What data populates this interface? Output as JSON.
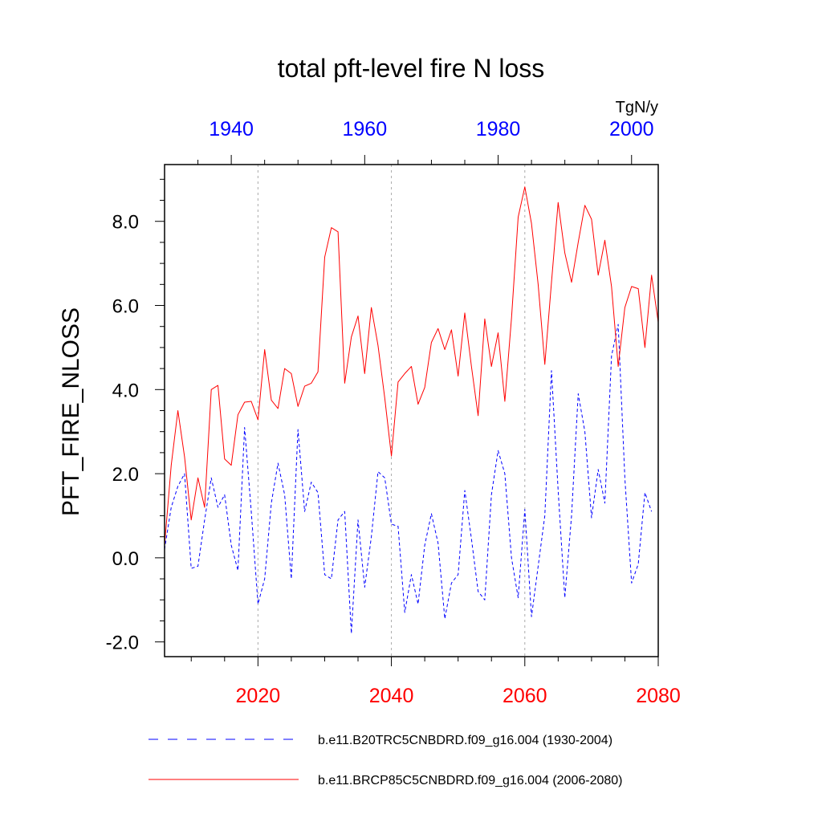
{
  "chart_data": {
    "type": "line",
    "title": "total pft-level fire N loss",
    "ylabel": "PFT_FIRE_NLOSS",
    "units": "TgN/y",
    "ylim": [
      -2.35,
      9.35
    ],
    "y_ticks": [
      -2.0,
      0.0,
      2.0,
      4.0,
      6.0,
      8.0
    ],
    "y_tick_labels": [
      "-2.0",
      "0.0",
      "2.0",
      "4.0",
      "6.0",
      "8.0"
    ],
    "x_bottom": {
      "range": [
        2006,
        2080
      ],
      "ticks": [
        2020,
        2040,
        2060,
        2080
      ],
      "tick_labels": [
        "2020",
        "2040",
        "2060",
        "2080"
      ],
      "color": "#ff0000"
    },
    "x_top": {
      "range": [
        1930,
        2004
      ],
      "ticks": [
        1940,
        1960,
        1980,
        2000
      ],
      "tick_labels": [
        "1940",
        "1960",
        "1980",
        "2000"
      ],
      "color": "#0000ff"
    },
    "grid": "vertical dotted at bottom-axis major ticks",
    "legend_position": "bottom",
    "series": [
      {
        "name": "b.e11.B20TRC5CNBDRD.f09_g16.004 (1930-2004)",
        "color": "#0000ff",
        "dash": "dashed",
        "axis": "top",
        "x_start": 1930,
        "values": [
          0.2,
          1.2,
          1.7,
          2.0,
          -0.25,
          -0.2,
          0.9,
          1.9,
          1.2,
          1.5,
          0.3,
          -0.3,
          3.1,
          1.1,
          -1.1,
          -0.5,
          1.3,
          2.25,
          1.5,
          -0.5,
          3.05,
          1.1,
          1.8,
          1.55,
          -0.4,
          -0.5,
          0.9,
          1.1,
          -1.8,
          0.9,
          -0.7,
          0.5,
          2.05,
          1.9,
          0.8,
          0.75,
          -1.3,
          -0.4,
          -1.1,
          0.3,
          1.05,
          0.35,
          -1.45,
          -0.6,
          -0.4,
          1.6,
          0.45,
          -0.8,
          -1.0,
          1.5,
          2.55,
          2.0,
          0.0,
          -0.95,
          1.15,
          -1.4,
          -0.2,
          1.0,
          4.45,
          1.6,
          -0.95,
          1.0,
          3.9,
          3.0,
          0.95,
          2.1,
          1.3,
          4.8,
          5.55,
          1.9,
          -0.6,
          -0.15,
          1.55,
          1.1
        ]
      },
      {
        "name": "b.e11.BRCP85C5CNBDRD.f09_g16.004 (2006-2080)",
        "color": "#ff0000",
        "dash": "solid",
        "axis": "bottom",
        "x_start": 2006,
        "values": [
          0.3,
          2.2,
          3.5,
          2.4,
          0.9,
          1.9,
          1.2,
          4.0,
          4.1,
          2.35,
          2.2,
          3.4,
          3.7,
          3.72,
          3.28,
          4.95,
          3.75,
          3.55,
          4.5,
          4.38,
          3.6,
          4.08,
          4.15,
          4.42,
          7.15,
          7.85,
          7.75,
          4.15,
          5.25,
          5.75,
          4.38,
          5.95,
          5.05,
          3.8,
          2.42,
          4.18,
          4.38,
          4.55,
          3.65,
          4.05,
          5.12,
          5.45,
          4.95,
          5.42,
          4.32,
          5.82,
          4.55,
          3.38,
          5.68,
          4.55,
          5.35,
          3.72,
          5.7,
          8.1,
          8.82,
          7.95,
          6.5,
          4.6,
          6.55,
          8.45,
          7.25,
          6.55,
          7.5,
          8.38,
          8.05,
          6.72,
          7.55,
          6.45,
          4.55,
          5.95,
          6.45,
          6.4,
          5.0,
          6.72,
          5.6
        ]
      }
    ]
  }
}
